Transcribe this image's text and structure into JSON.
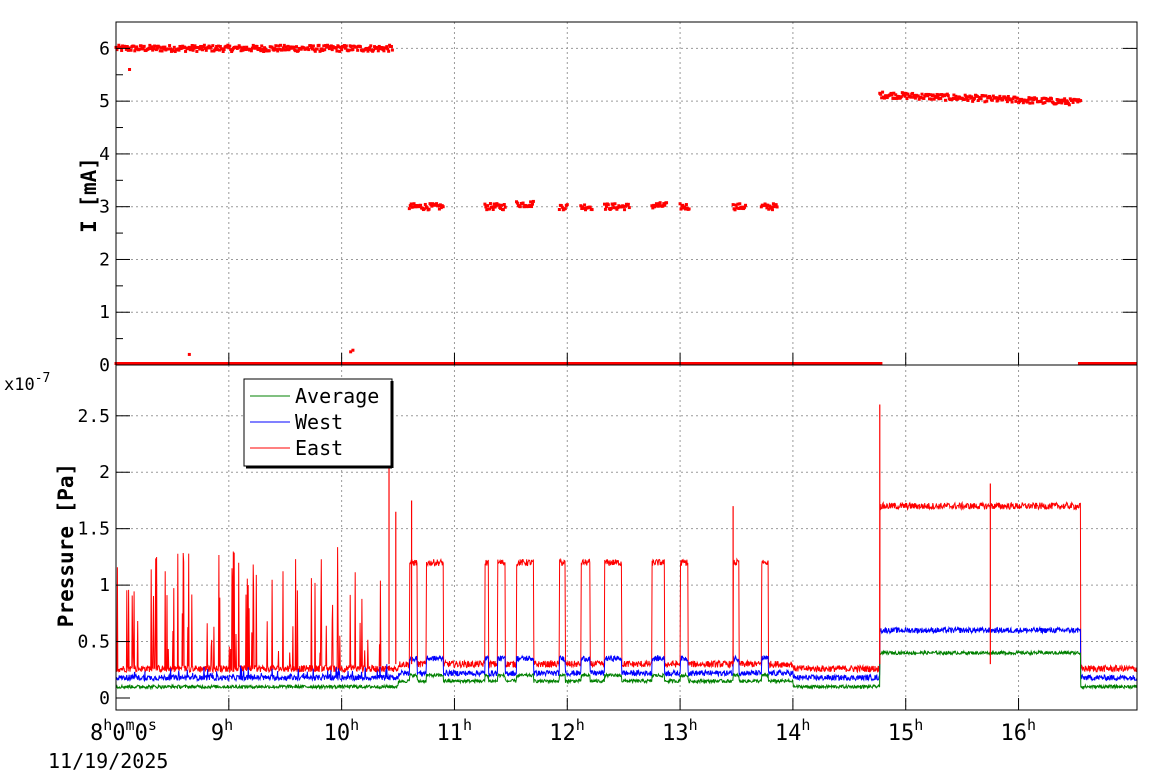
{
  "chart_data": [
    {
      "type": "scatter",
      "ylabel": "I [mA]",
      "ylim": [
        0,
        6.5
      ],
      "y_ticks": [
        "0",
        "1",
        "2",
        "3",
        "4",
        "5",
        "6"
      ],
      "grid": true,
      "color": "#ff0000",
      "segments": [
        {
          "x_start_h": 8.0,
          "x_end_h": 10.45,
          "y": 6.0
        },
        {
          "x_start_h": 10.6,
          "x_end_h": 10.9,
          "y": 3.0
        },
        {
          "x_start_h": 11.27,
          "x_end_h": 11.45,
          "y": 3.0
        },
        {
          "x_start_h": 11.55,
          "x_end_h": 11.7,
          "y": 3.05
        },
        {
          "x_start_h": 11.93,
          "x_end_h": 12.0,
          "y": 3.0
        },
        {
          "x_start_h": 12.12,
          "x_end_h": 12.22,
          "y": 3.0
        },
        {
          "x_start_h": 12.33,
          "x_end_h": 12.55,
          "y": 3.0
        },
        {
          "x_start_h": 12.75,
          "x_end_h": 12.88,
          "y": 3.02
        },
        {
          "x_start_h": 13.0,
          "x_end_h": 13.08,
          "y": 3.0
        },
        {
          "x_start_h": 13.47,
          "x_end_h": 13.58,
          "y": 3.0
        },
        {
          "x_start_h": 13.72,
          "x_end_h": 13.86,
          "y": 3.0
        },
        {
          "x_start_h": 14.77,
          "x_end_h": 16.55,
          "y_start": 5.12,
          "y_end": 4.98
        }
      ],
      "zero_gaps_h": [
        [
          14.78,
          16.52
        ]
      ],
      "outliers": [
        {
          "x_h": 8.12,
          "y": 5.6
        },
        {
          "x_h": 8.65,
          "y": 0.2
        },
        {
          "x_h": 10.08,
          "y": 0.25
        },
        {
          "x_h": 10.1,
          "y": 0.28
        }
      ]
    },
    {
      "type": "line",
      "ylabel": "Pressure [Pa]",
      "y_multiplier": "x10",
      "y_multiplier_exp": "-7",
      "ylim": [
        0,
        2.95
      ],
      "y_ticks": [
        "0",
        "0.5",
        "1",
        "1.5",
        "2",
        "2.5"
      ],
      "grid": true,
      "legend_position": "top-left",
      "series": [
        {
          "name": "Average",
          "color": "#008000",
          "baseline": 0.1,
          "beam_low": 0.15,
          "beam_high": 0.4,
          "noise": 0.015
        },
        {
          "name": "West",
          "color": "#0000ff",
          "baseline": 0.18,
          "beam_low": 0.22,
          "beam_high": 0.6,
          "noise": 0.025
        },
        {
          "name": "East",
          "color": "#ff0000",
          "baseline": 0.26,
          "beam_low": 0.3,
          "beam_high": 1.7,
          "noise": 0.03
        }
      ],
      "beam_on_3mA_h": [
        [
          10.6,
          10.67
        ],
        [
          10.75,
          10.9
        ],
        [
          11.27,
          11.3
        ],
        [
          11.38,
          11.45
        ],
        [
          11.55,
          11.7
        ],
        [
          11.93,
          11.98
        ],
        [
          12.12,
          12.2
        ],
        [
          12.33,
          12.48
        ],
        [
          12.75,
          12.86
        ],
        [
          13.0,
          13.07
        ],
        [
          13.47,
          13.52
        ],
        [
          13.72,
          13.78
        ]
      ],
      "beam_on_5mA_h": [
        [
          14.77,
          16.55
        ]
      ],
      "east_spikes": [
        {
          "x_h": 10.42,
          "y": 2.5
        },
        {
          "x_h": 10.48,
          "y": 1.65
        },
        {
          "x_h": 10.62,
          "y": 1.75
        },
        {
          "x_h": 13.47,
          "y": 1.7
        },
        {
          "x_h": 14.77,
          "y": 2.6
        },
        {
          "x_h": 15.75,
          "y": 1.9
        }
      ]
    }
  ],
  "x_axis": {
    "range_h": [
      8.0,
      17.05
    ],
    "tick_labels": [
      {
        "h": 8,
        "main": "8",
        "sup": "h",
        "extra": "0m0s"
      },
      {
        "h": 9,
        "main": "9",
        "sup": "h"
      },
      {
        "h": 10,
        "main": "10",
        "sup": "h"
      },
      {
        "h": 11,
        "main": "11",
        "sup": "h"
      },
      {
        "h": 12,
        "main": "12",
        "sup": "h"
      },
      {
        "h": 13,
        "main": "13",
        "sup": "h"
      },
      {
        "h": 14,
        "main": "14",
        "sup": "h"
      },
      {
        "h": 15,
        "main": "15",
        "sup": "h"
      },
      {
        "h": 16,
        "main": "16",
        "sup": "h"
      }
    ],
    "date_label": "11/19/2025"
  }
}
